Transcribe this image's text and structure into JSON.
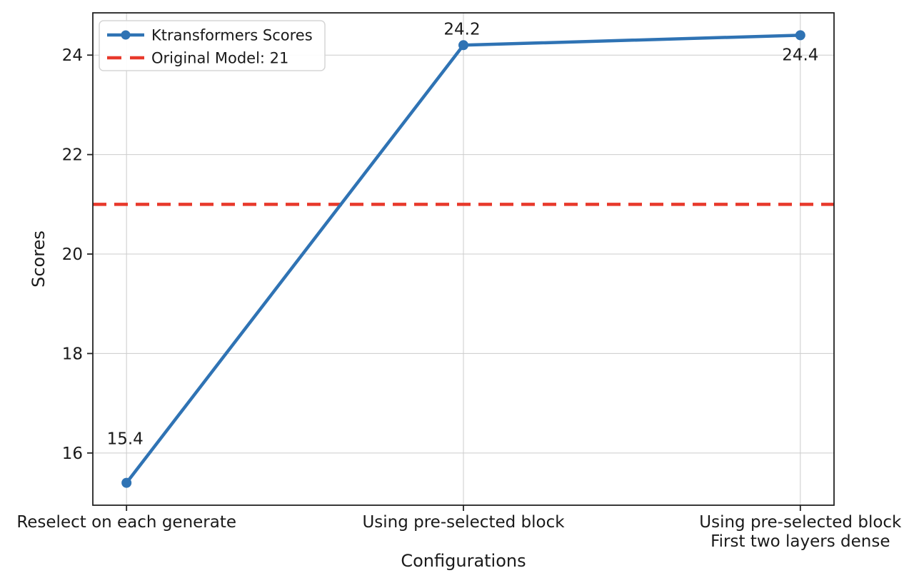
{
  "chart_data": {
    "type": "line",
    "title": "",
    "xlabel": "Configurations",
    "ylabel": "Scores",
    "categories": [
      "Reselect on each generate",
      "Using pre-selected block",
      "Using pre-selected block\nFirst two layers dense"
    ],
    "series": [
      {
        "name": "Ktransformers Scores",
        "values": [
          15.4,
          24.2,
          24.4
        ],
        "color": "#2f73b4",
        "marker": "circle",
        "style": "solid"
      }
    ],
    "reference_line": {
      "label": "Original Model: 21",
      "value": 21,
      "color": "#e8392b",
      "style": "dashed"
    },
    "point_labels": [
      "15.4",
      "24.2",
      "24.4"
    ],
    "yticks": [
      16,
      18,
      20,
      22,
      24
    ],
    "ylim": [
      14.95,
      24.85
    ],
    "grid": true,
    "grid_color": "#cccccc",
    "spine_color": "#222222",
    "legend_position": "upper left",
    "legend": [
      "Ktransformers Scores",
      "Original Model: 21"
    ]
  }
}
